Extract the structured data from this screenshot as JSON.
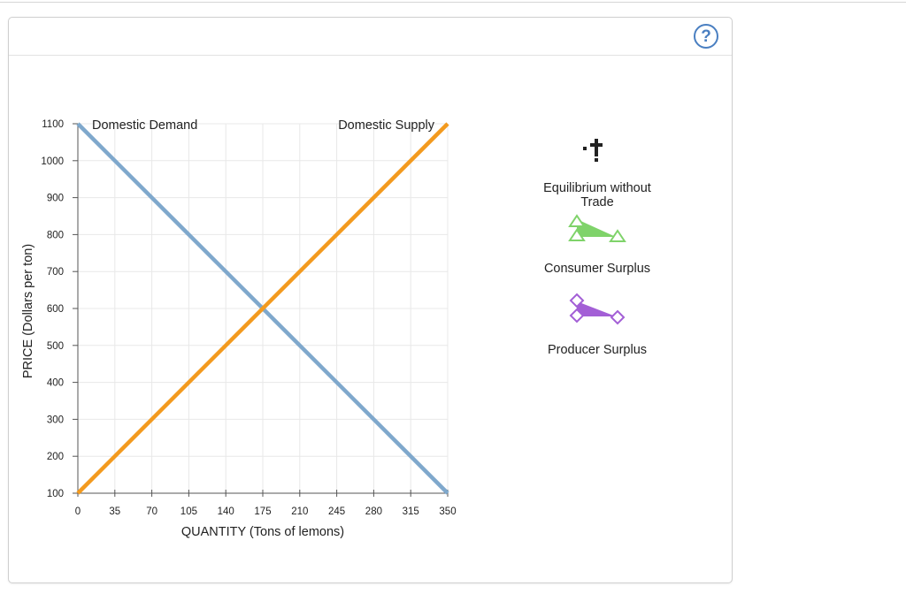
{
  "help": {
    "label": "?"
  },
  "palette": {
    "items": [
      {
        "label": "Equilibrium without Trade",
        "icon": "equilibrium-cross-icon",
        "color": "#222222"
      },
      {
        "label": "Consumer Surplus",
        "icon": "green-triangle-icon",
        "color": "#7fd36a"
      },
      {
        "label": "Producer Surplus",
        "icon": "purple-diamond-icon",
        "color": "#a35fd6"
      }
    ]
  },
  "chart_data": {
    "type": "line",
    "xlabel": "QUANTITY (Tons of lemons)",
    "ylabel": "PRICE (Dollars per ton)",
    "xlim": [
      0,
      350
    ],
    "ylim": [
      100,
      1100
    ],
    "x_ticks": [
      0,
      35,
      70,
      105,
      140,
      175,
      210,
      245,
      280,
      315,
      350
    ],
    "y_ticks": [
      100,
      200,
      300,
      400,
      500,
      600,
      700,
      800,
      900,
      1000,
      1100
    ],
    "grid": true,
    "series": [
      {
        "name": "Domestic Demand",
        "color": "#7fa8cc",
        "x": [
          0,
          350
        ],
        "y": [
          1100,
          100
        ]
      },
      {
        "name": "Domestic Supply",
        "color": "#f39a1e",
        "x": [
          0,
          350
        ],
        "y": [
          100,
          1100
        ]
      }
    ]
  }
}
